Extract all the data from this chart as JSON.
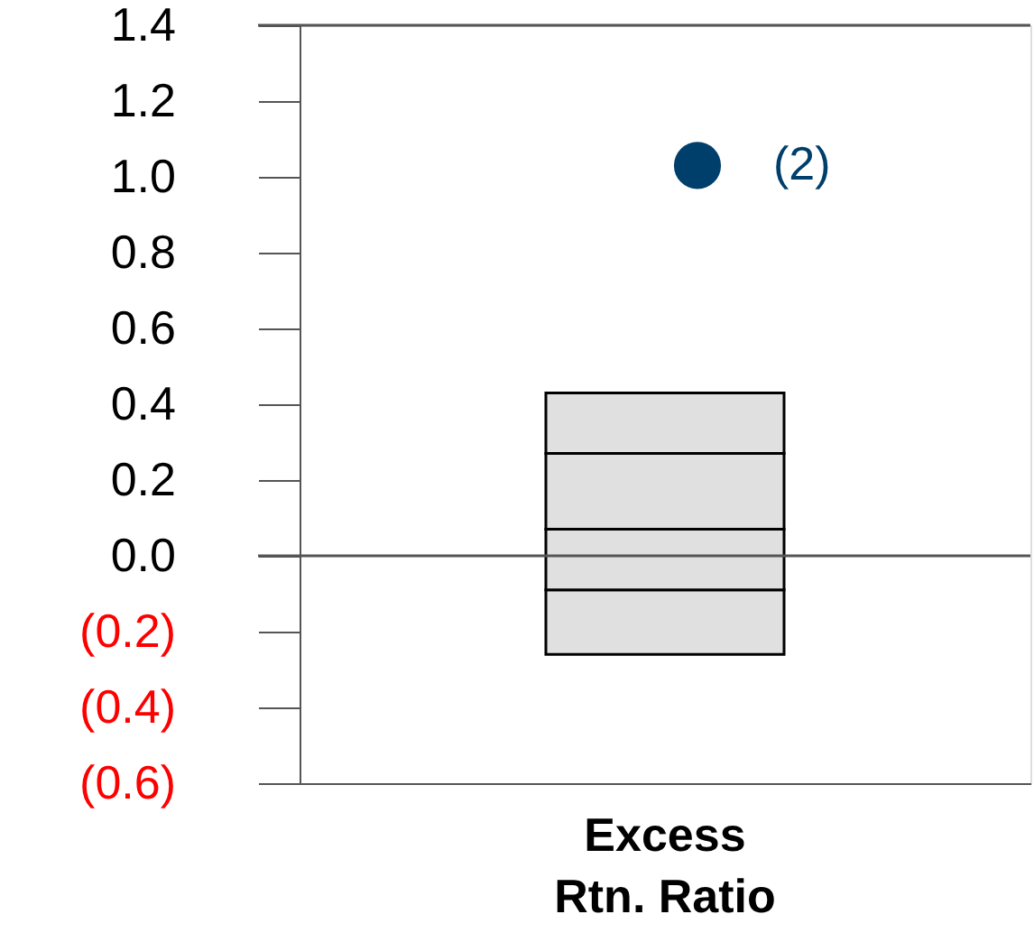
{
  "chart_data": {
    "type": "bar",
    "categories": [
      "Excess Rtn. Ratio"
    ],
    "series": [
      {
        "color": "#e0e0e0",
        "base": [
          -0.26
        ],
        "values": [
          0.17
        ]
      },
      {
        "color": "#e0e0e0",
        "base": [
          -0.09
        ],
        "values": [
          0.16
        ]
      },
      {
        "color": "#e0e0e0",
        "base": [
          0.07
        ],
        "values": [
          0.2
        ]
      },
      {
        "color": "#e0e0e0",
        "base": [
          0.27
        ],
        "values": [
          0.16
        ]
      },
      {
        "type": "scatter",
        "color": "#003f6b",
        "x": [
          "Excess Rtn. Ratio"
        ],
        "values": [
          1.03
        ]
      }
    ],
    "annotations": [
      {
        "text": "(2)",
        "x": "Excess Rtn. Ratio",
        "y": 1.03
      }
    ],
    "ylim": [
      -0.6,
      1.4
    ],
    "yticks": [
      {
        "value": -0.6,
        "label": "(0.6)"
      },
      {
        "value": -0.4,
        "label": "(0.4)"
      },
      {
        "value": -0.2,
        "label": "(0.2)"
      },
      {
        "value": 0,
        "label": "0.0"
      },
      {
        "value": 0.2,
        "label": "0.2"
      },
      {
        "value": 0.4,
        "label": "0.4"
      },
      {
        "value": 0.6,
        "label": "0.6"
      },
      {
        "value": 0.8,
        "label": "0.8"
      },
      {
        "value": 1,
        "label": "1.0"
      },
      {
        "value": 1.2,
        "label": "1.2"
      },
      {
        "value": 1.4,
        "label": "1.4"
      }
    ],
    "ref_lines": [
      {
        "axis": "y",
        "value": 0
      }
    ],
    "marker": "circle"
  }
}
